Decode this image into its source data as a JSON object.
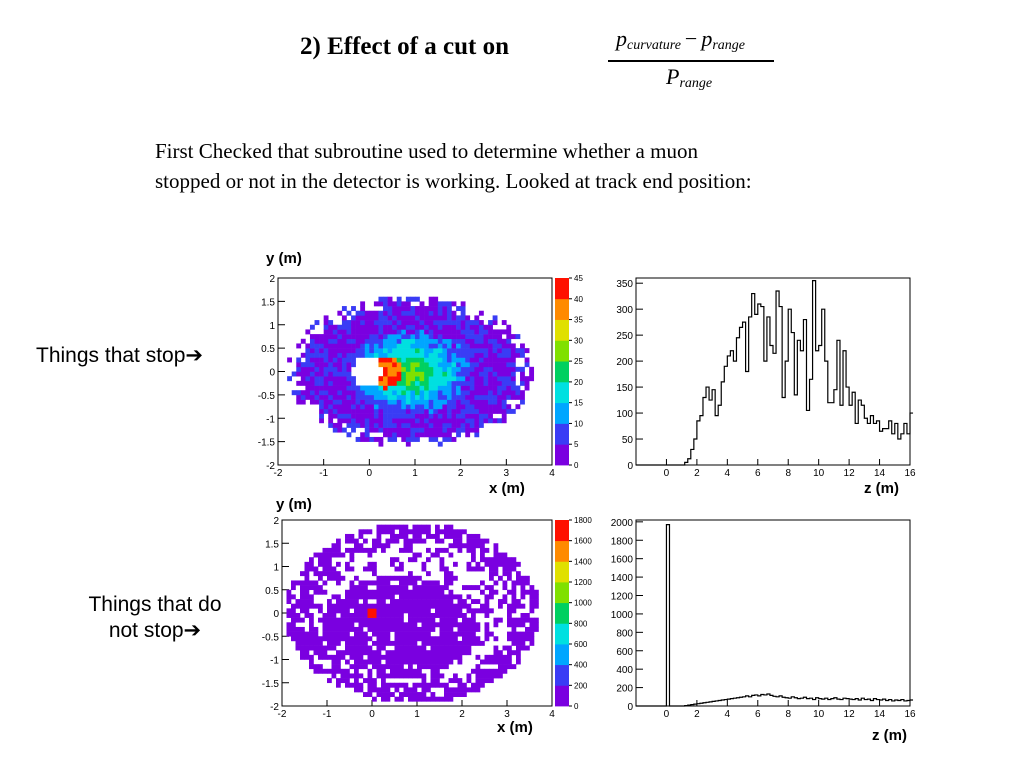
{
  "slide": {
    "title": "2) Effect of a cut on",
    "formula": {
      "num_a": "p",
      "num_a_sub": "curvature",
      "minus": "−",
      "num_b": "p",
      "num_b_sub": "range",
      "den": "P",
      "den_sub": "range"
    },
    "intro_line1": "First Checked that subroutine used to determine whether a muon",
    "intro_line2": "stopped or not in the detector is working. Looked at track end position:",
    "label_stop": "Things that stop➔",
    "label_nostop_1": "Things that do",
    "label_nostop_2": "not stop➔"
  },
  "chart_data": [
    {
      "type": "heatmap",
      "xlabel": "x (m)",
      "ylabel": "y (m)",
      "xlim": [
        -2,
        4
      ],
      "ylim": [
        -2,
        2
      ],
      "x_ticks": [
        -2,
        -1,
        0,
        1,
        2,
        3,
        4
      ],
      "y_ticks": [
        -2,
        -1.5,
        -1,
        -0.5,
        0,
        0.5,
        1,
        1.5,
        2
      ],
      "zlim": [
        0,
        45
      ],
      "z_ticks": [
        0,
        5,
        10,
        15,
        20,
        25,
        30,
        35,
        40,
        45
      ],
      "colormap": [
        "#7a00e0",
        "#3a3cf5",
        "#00a6ff",
        "#00e0e0",
        "#00d060",
        "#80e000",
        "#e0e000",
        "#ff8a00",
        "#ff1000"
      ]
    },
    {
      "type": "bar",
      "xlabel": "z (m)",
      "xlim": [
        -2,
        16
      ],
      "ylim": [
        0,
        360
      ],
      "x_ticks": [
        0,
        2,
        4,
        6,
        8,
        10,
        12,
        14,
        16
      ],
      "y_ticks": [
        0,
        50,
        100,
        150,
        200,
        250,
        300,
        350
      ],
      "bin_width": 0.2,
      "values": [
        0,
        0,
        0,
        0,
        0,
        0,
        0,
        0,
        0,
        0,
        0,
        0,
        0,
        0,
        0,
        0,
        5,
        12,
        30,
        50,
        85,
        95,
        130,
        150,
        125,
        145,
        95,
        115,
        160,
        190,
        210,
        220,
        200,
        245,
        265,
        275,
        180,
        285,
        330,
        290,
        310,
        305,
        200,
        285,
        230,
        215,
        335,
        305,
        130,
        200,
        300,
        255,
        135,
        240,
        220,
        280,
        105,
        165,
        355,
        220,
        230,
        300,
        200,
        120,
        120,
        145,
        240,
        115,
        220,
        150,
        115,
        140,
        80,
        125,
        115,
        90,
        80,
        95,
        80,
        85,
        65,
        70,
        70,
        85,
        60,
        80,
        50,
        60,
        80,
        60,
        100
      ]
    },
    {
      "type": "heatmap",
      "xlabel": "x (m)",
      "ylabel": "y (m)",
      "xlim": [
        -2,
        4
      ],
      "ylim": [
        -2,
        2
      ],
      "x_ticks": [
        -2,
        -1,
        0,
        1,
        2,
        3,
        4
      ],
      "y_ticks": [
        -2,
        -1.5,
        -1,
        -0.5,
        0,
        0.5,
        1,
        1.5,
        2
      ],
      "zlim": [
        0,
        1800
      ],
      "z_ticks": [
        0,
        200,
        400,
        600,
        800,
        1000,
        1200,
        1400,
        1600,
        1800
      ],
      "colormap": [
        "#7a00e0",
        "#3a3cf5",
        "#00a6ff",
        "#00e0e0",
        "#00d060",
        "#80e000",
        "#e0e000",
        "#ff8a00",
        "#ff1000"
      ]
    },
    {
      "type": "bar",
      "xlabel": "z (m)",
      "xlim": [
        -2,
        16
      ],
      "ylim": [
        0,
        2020
      ],
      "x_ticks": [
        0,
        2,
        4,
        6,
        8,
        10,
        12,
        14,
        16
      ],
      "y_ticks": [
        0,
        200,
        400,
        600,
        800,
        1000,
        1200,
        1400,
        1600,
        1800,
        2000
      ],
      "bin_width": 0.2,
      "values": [
        0,
        0,
        0,
        0,
        0,
        0,
        0,
        0,
        0,
        0,
        1970,
        0,
        0,
        0,
        0,
        0,
        5,
        10,
        15,
        20,
        25,
        30,
        35,
        40,
        45,
        50,
        55,
        60,
        65,
        70,
        75,
        80,
        85,
        90,
        95,
        100,
        110,
        100,
        115,
        120,
        110,
        125,
        120,
        130,
        115,
        105,
        100,
        110,
        95,
        90,
        85,
        100,
        90,
        80,
        85,
        95,
        80,
        85,
        70,
        90,
        80,
        75,
        85,
        70,
        80,
        90,
        75,
        70,
        85,
        80,
        75,
        70,
        80,
        65,
        85,
        70,
        75,
        60,
        80,
        70,
        65,
        75,
        60,
        70,
        55,
        65,
        60,
        70,
        55,
        60,
        65
      ]
    }
  ]
}
